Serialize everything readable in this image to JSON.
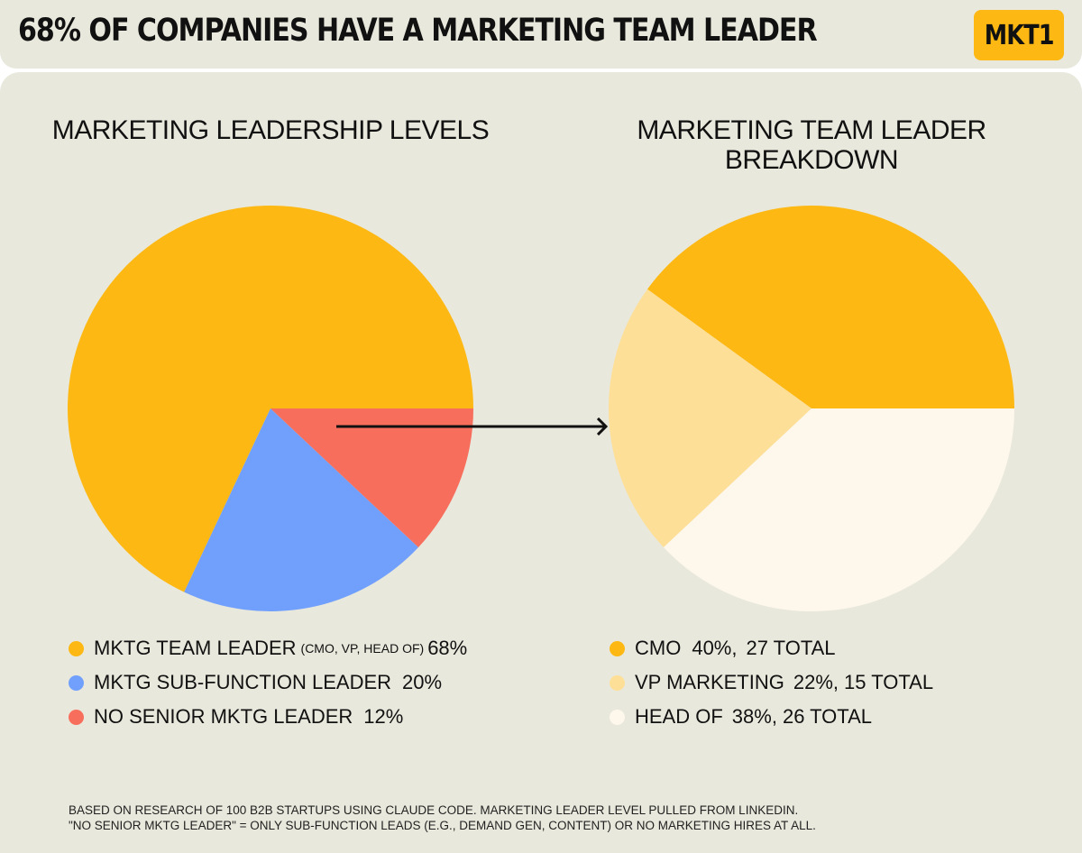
{
  "header": {
    "headline": "68% OF COMPANIES HAVE A MARKETING TEAM LEADER",
    "logo_text": "MKT1"
  },
  "colors": {
    "yellow": "#fdb813",
    "blue": "#71a0fc",
    "red": "#f76e5c",
    "light_yellow": "#fedf97",
    "cream": "#fdf8eb",
    "background": "#e9e8dc"
  },
  "chart_data": [
    {
      "type": "pie",
      "title": "MARKETING LEADERSHIP LEVELS",
      "categories": [
        "MKTG TEAM LEADER",
        "MKTG SUB-FUNCTION LEADER",
        "NO SENIOR MKTG LEADER"
      ],
      "values": [
        68,
        20,
        12
      ],
      "colors": [
        "#fdb813",
        "#71a0fc",
        "#f76e5c"
      ],
      "legend": [
        {
          "label": "MKTG TEAM LEADER",
          "note": "(CMO, VP, HEAD OF)",
          "pct": "68%"
        },
        {
          "label": "MKTG SUB-FUNCTION LEADER",
          "note": "",
          "pct": "20%"
        },
        {
          "label": "NO SENIOR MKTG LEADER",
          "note": "",
          "pct": "12%"
        }
      ],
      "legend_placement": "bottom"
    },
    {
      "type": "pie",
      "title": "MARKETING TEAM LEADER BREAKDOWN",
      "categories": [
        "CMO",
        "VP MARKETING",
        "HEAD OF"
      ],
      "values": [
        40,
        22,
        38
      ],
      "totals": [
        27,
        15,
        26
      ],
      "colors": [
        "#fdb813",
        "#fedf97",
        "#fdf8eb"
      ],
      "legend": [
        {
          "label": "CMO",
          "pct": "40%,",
          "total": "27 TOTAL"
        },
        {
          "label": "VP MARKETING",
          "pct": "22%,",
          "total": "15 TOTAL"
        },
        {
          "label": "HEAD OF",
          "pct": "38%,",
          "total": "26 TOTAL"
        }
      ],
      "legend_placement": "bottom"
    }
  ],
  "footnote": {
    "line1": "BASED ON RESEARCH OF 100 B2B STARTUPS USING CLAUDE CODE. MARKETING LEADER LEVEL PULLED FROM LINKEDIN.",
    "line2": "\"NO SENIOR MKTG LEADER\" = ONLY SUB-FUNCTION LEADS (E.G., DEMAND GEN, CONTENT) OR NO MARKETING HIRES AT ALL."
  }
}
